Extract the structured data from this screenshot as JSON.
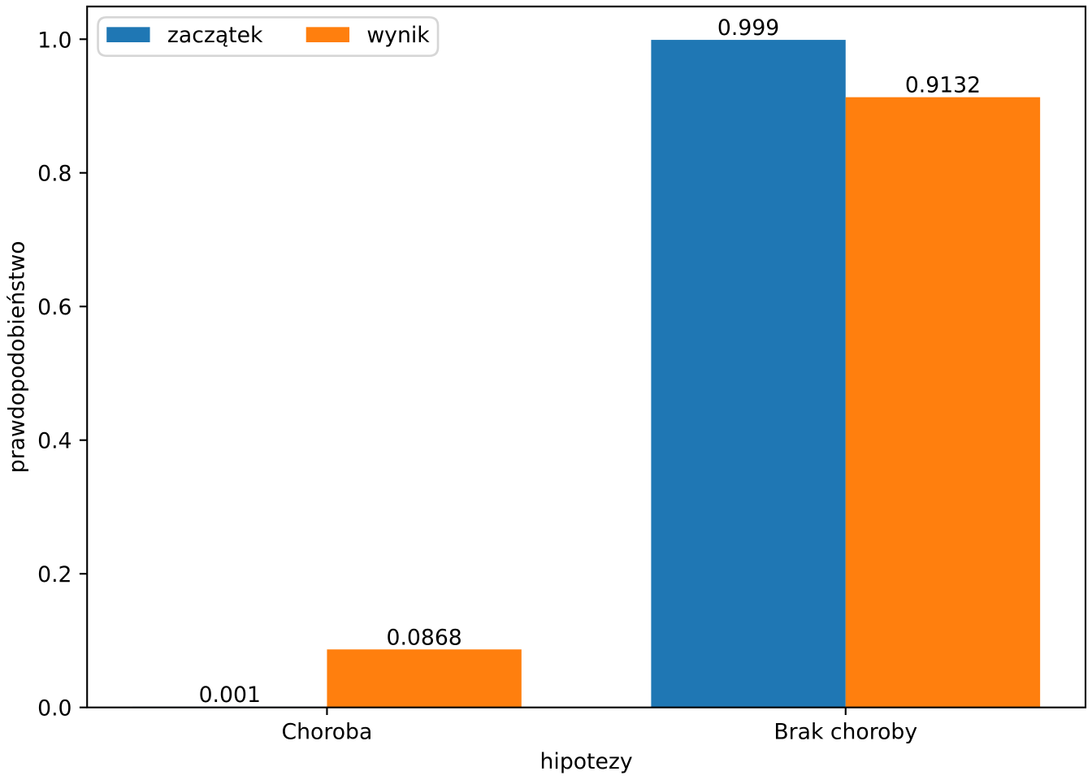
{
  "chart_data": {
    "type": "bar",
    "categories": [
      "Choroba",
      "Brak choroby"
    ],
    "x": [
      0,
      1
    ],
    "series": [
      {
        "name": "zaczątek",
        "values": [
          0.001,
          0.999
        ],
        "value_labels": [
          "0.001",
          "0.999"
        ],
        "color": "#1f77b4"
      },
      {
        "name": "wynik",
        "values": [
          0.0868,
          0.9132
        ],
        "value_labels": [
          "0.0868",
          "0.9132"
        ],
        "color": "#ff7f0e"
      }
    ],
    "xlabel": "hipotezy",
    "ylabel": "prawdopodobieństwo",
    "ytick_values": [
      0.0,
      0.2,
      0.4,
      0.6,
      0.8,
      1.0
    ],
    "ytick_labels": [
      "0.0",
      "0.2",
      "0.4",
      "0.6",
      "0.8",
      "1.0"
    ],
    "xlim": [
      -0.4625,
      1.4625
    ],
    "ylim": [
      0,
      1.04895
    ],
    "bar_width": 0.375,
    "grid": false,
    "legend": {
      "position": "upper left",
      "entries": [
        "zaczątek",
        "wynik"
      ]
    },
    "colors": {
      "background": "#ffffff",
      "axes": "#000000",
      "text": "#000000",
      "legend_border": "#d6d6d6",
      "legend_background": "#ffffff"
    }
  }
}
